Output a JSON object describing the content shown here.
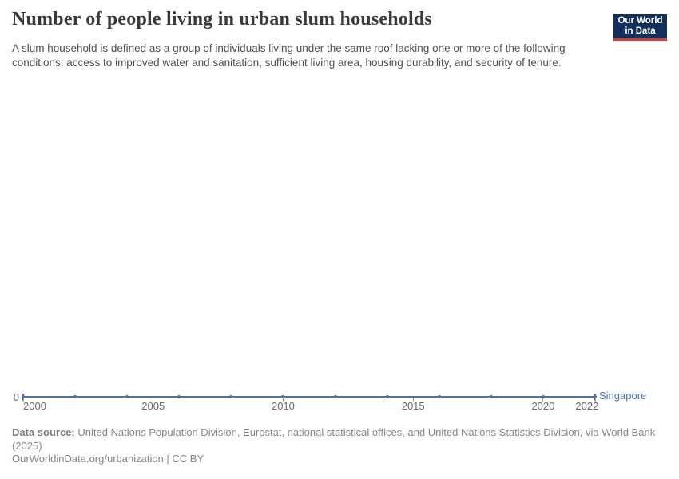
{
  "header": {
    "title": "Number of people living in urban slum households",
    "subtitle": "A slum household is defined as a group of individuals living under the same roof lacking one or more of the following conditions: access to improved water and sanitation, sufficient living area, housing durability, and security of tenure."
  },
  "logo": {
    "line1": "Our World",
    "line2": "in Data",
    "bg_color": "#12305b",
    "bar_color": "#d93a34",
    "text_color": "#ffffff"
  },
  "chart_data": {
    "type": "line",
    "title": "Number of people living in urban slum households",
    "xlabel": "",
    "ylabel": "",
    "x": [
      2000,
      2002,
      2004,
      2006,
      2008,
      2010,
      2012,
      2014,
      2016,
      2018,
      2020,
      2022
    ],
    "series": [
      {
        "name": "Singapore",
        "color": "#4c6fae",
        "values": [
          0,
          0,
          0,
          0,
          0,
          0,
          0,
          0,
          0,
          0,
          0,
          0
        ]
      }
    ],
    "x_ticks": [
      2000,
      2005,
      2010,
      2015,
      2020,
      2022
    ],
    "y_ticks": [
      0
    ],
    "y_zero_label": "0",
    "ylim": [
      0,
      0
    ],
    "grid": false,
    "legend_position": "entity-label-right-of-line"
  },
  "footer": {
    "data_source_label": "Data source:",
    "data_source_text": "United Nations Population Division, Eurostat, national statistical offices, and United Nations Statistics Division, via World Bank (2025)",
    "attribution": "OurWorldinData.org/urbanization | CC BY"
  }
}
